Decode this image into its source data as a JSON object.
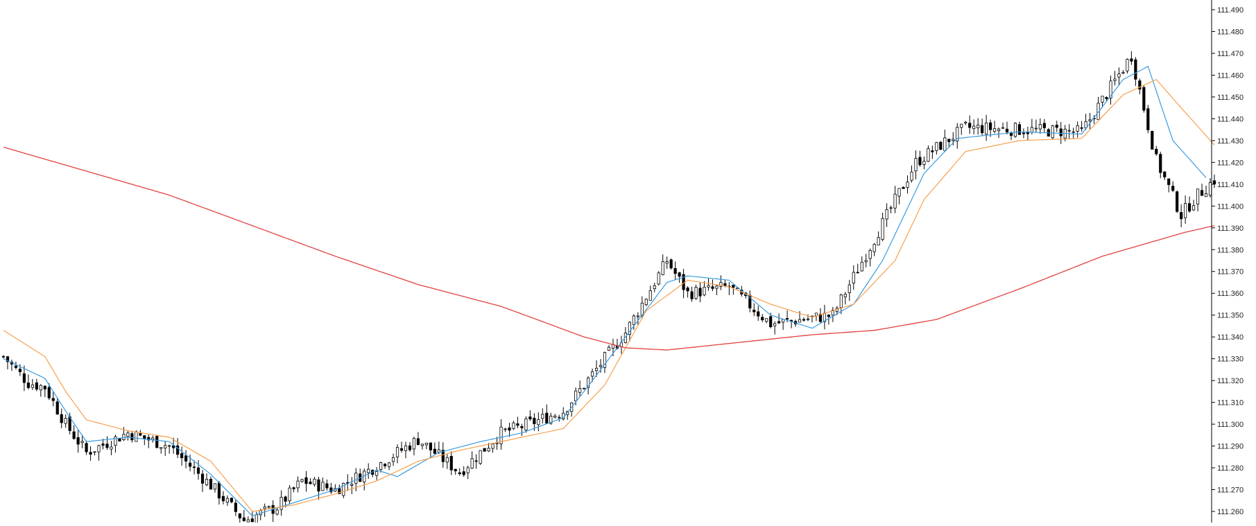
{
  "chart_data": {
    "type": "candlestick",
    "instrument_hint": "",
    "title": "",
    "xlabel": "",
    "ylabel": "",
    "ylim": [
      111.255,
      111.492
    ],
    "y_ticks": [
      "111.490",
      "111.480",
      "111.470",
      "111.460",
      "111.450",
      "111.440",
      "111.430",
      "111.420",
      "111.410",
      "111.400",
      "111.390",
      "111.380",
      "111.370",
      "111.360",
      "111.350",
      "111.340",
      "111.330",
      "111.320",
      "111.310",
      "111.300",
      "111.290",
      "111.280",
      "111.270",
      "111.260"
    ],
    "grid": false,
    "candle_count": 280,
    "candles_anchor_close": [
      [
        0,
        111.331
      ],
      [
        6,
        111.319
      ],
      [
        10,
        111.317
      ],
      [
        15,
        111.3
      ],
      [
        20,
        111.287
      ],
      [
        30,
        111.296
      ],
      [
        40,
        111.29
      ],
      [
        50,
        111.272
      ],
      [
        58,
        111.256
      ],
      [
        66,
        111.262
      ],
      [
        72,
        111.274
      ],
      [
        80,
        111.27
      ],
      [
        90,
        111.281
      ],
      [
        100,
        111.293
      ],
      [
        110,
        111.278
      ],
      [
        120,
        111.296
      ],
      [
        125,
        111.299
      ],
      [
        135,
        111.306
      ],
      [
        150,
        111.342
      ],
      [
        160,
        111.375
      ],
      [
        165,
        111.36
      ],
      [
        175,
        111.363
      ],
      [
        185,
        111.346
      ],
      [
        200,
        111.35
      ],
      [
        220,
        111.42
      ],
      [
        232,
        111.436
      ],
      [
        260,
        111.434
      ],
      [
        272,
        111.469
      ],
      [
        278,
        111.421
      ],
      [
        284,
        111.396
      ],
      [
        288,
        111.405
      ],
      [
        292,
        111.412
      ]
    ],
    "series": [
      {
        "name": "",
        "kind": "fast-ma",
        "color": "#3a9be0",
        "points": [
          [
            0,
            111.33
          ],
          [
            10,
            111.321
          ],
          [
            15,
            111.306
          ],
          [
            20,
            111.292
          ],
          [
            30,
            111.294
          ],
          [
            40,
            111.292
          ],
          [
            50,
            111.277
          ],
          [
            60,
            111.258
          ],
          [
            70,
            111.264
          ],
          [
            80,
            111.27
          ],
          [
            90,
            111.279
          ],
          [
            95,
            111.276
          ],
          [
            105,
            111.287
          ],
          [
            115,
            111.292
          ],
          [
            125,
            111.296
          ],
          [
            135,
            111.303
          ],
          [
            140,
            111.315
          ],
          [
            150,
            111.34
          ],
          [
            160,
            111.365
          ],
          [
            165,
            111.368
          ],
          [
            175,
            111.366
          ],
          [
            185,
            111.35
          ],
          [
            195,
            111.344
          ],
          [
            205,
            111.355
          ],
          [
            212,
            111.375
          ],
          [
            222,
            111.415
          ],
          [
            230,
            111.431
          ],
          [
            245,
            111.434
          ],
          [
            260,
            111.433
          ],
          [
            270,
            111.458
          ],
          [
            276,
            111.464
          ],
          [
            282,
            111.43
          ],
          [
            290,
            111.413
          ]
        ]
      },
      {
        "name": "",
        "kind": "slow-ma",
        "color": "#f6a04d",
        "points": [
          [
            0,
            111.343
          ],
          [
            10,
            111.331
          ],
          [
            15,
            111.315
          ],
          [
            20,
            111.302
          ],
          [
            30,
            111.297
          ],
          [
            40,
            111.294
          ],
          [
            50,
            111.283
          ],
          [
            60,
            111.26
          ],
          [
            70,
            111.263
          ],
          [
            80,
            111.268
          ],
          [
            90,
            111.274
          ],
          [
            100,
            111.283
          ],
          [
            110,
            111.288
          ],
          [
            125,
            111.294
          ],
          [
            135,
            111.298
          ],
          [
            145,
            111.318
          ],
          [
            155,
            111.352
          ],
          [
            165,
            111.366
          ],
          [
            175,
            111.363
          ],
          [
            185,
            111.355
          ],
          [
            195,
            111.349
          ],
          [
            205,
            111.355
          ],
          [
            215,
            111.375
          ],
          [
            222,
            111.403
          ],
          [
            232,
            111.425
          ],
          [
            245,
            111.43
          ],
          [
            260,
            111.431
          ],
          [
            270,
            111.451
          ],
          [
            278,
            111.458
          ],
          [
            284,
            111.445
          ],
          [
            292,
            111.428
          ]
        ]
      },
      {
        "name": "",
        "kind": "long-ma",
        "color": "#e0403c",
        "points": [
          [
            0,
            111.427
          ],
          [
            20,
            111.416
          ],
          [
            40,
            111.405
          ],
          [
            60,
            111.391
          ],
          [
            80,
            111.377
          ],
          [
            100,
            111.364
          ],
          [
            120,
            111.354
          ],
          [
            140,
            111.34
          ],
          [
            150,
            111.335
          ],
          [
            160,
            111.334
          ],
          [
            175,
            111.337
          ],
          [
            195,
            111.341
          ],
          [
            210,
            111.343
          ],
          [
            225,
            111.348
          ],
          [
            245,
            111.362
          ],
          [
            265,
            111.377
          ],
          [
            285,
            111.388
          ],
          [
            292,
            111.391
          ]
        ]
      }
    ]
  }
}
